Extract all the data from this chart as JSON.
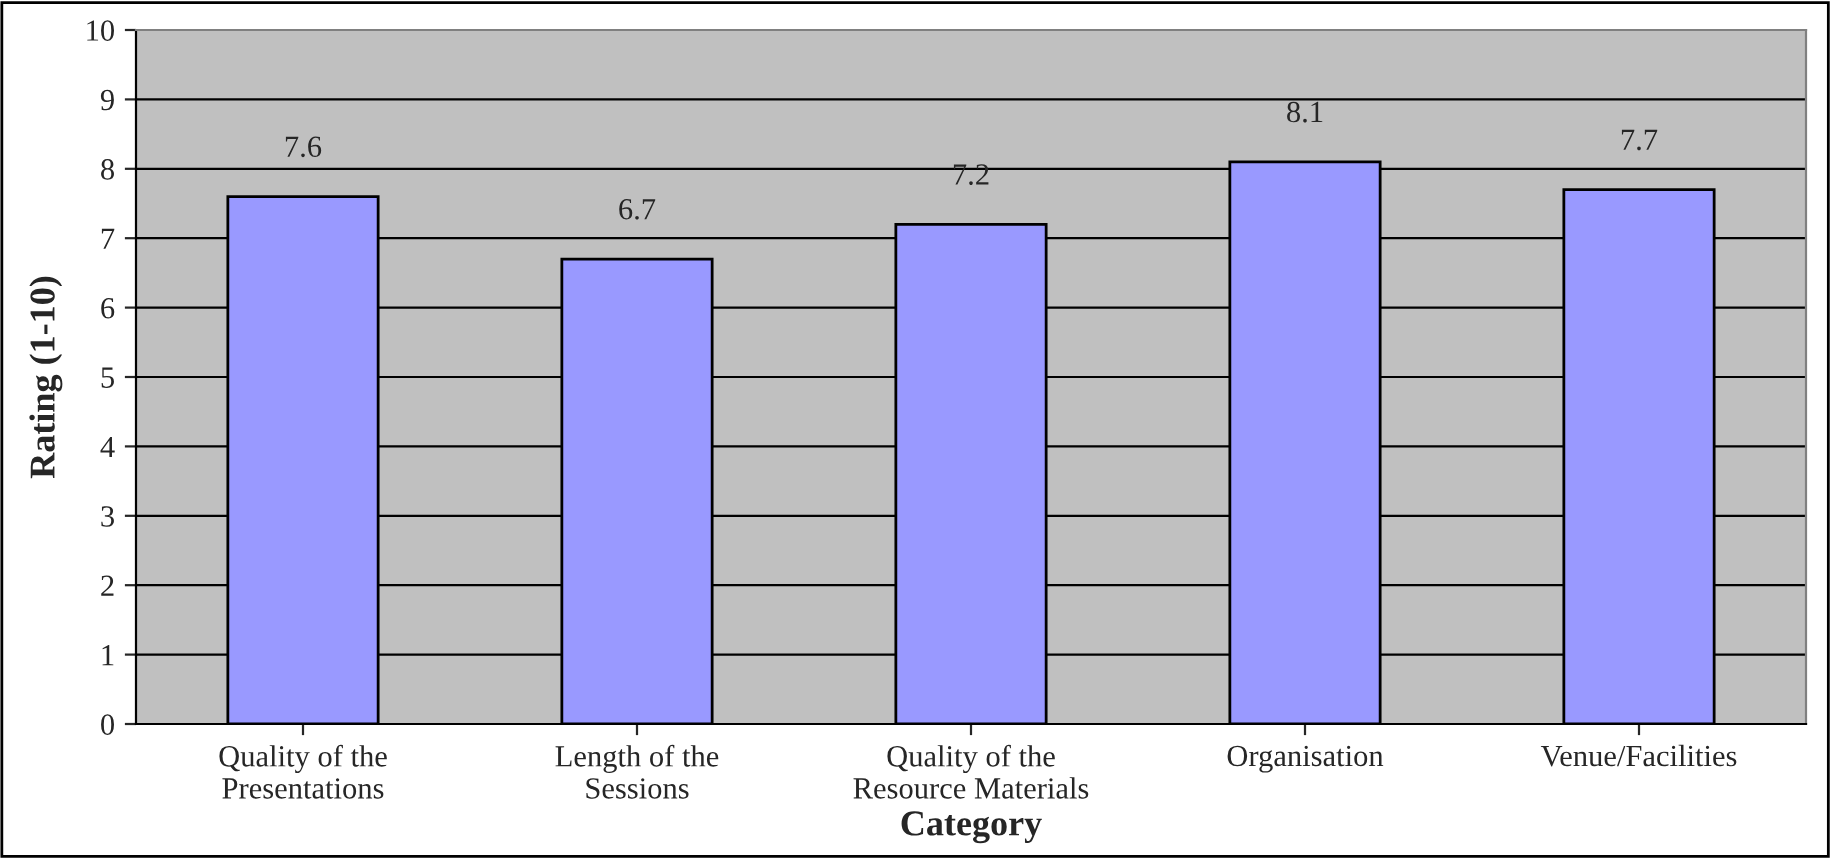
{
  "chart_data": {
    "type": "bar",
    "xlabel": "Category",
    "ylabel": "Rating (1-10)",
    "categories": [
      "Quality of the\nPresentations",
      "Length of the\nSessions",
      "Quality of the\nResource Materials",
      "Organisation",
      "Venue/Facilities"
    ],
    "values": [
      7.6,
      6.7,
      7.2,
      8.1,
      7.7
    ],
    "color": "#9999ff",
    "ylim": [
      0,
      10
    ],
    "yticks": [
      0,
      1,
      2,
      3,
      4,
      5,
      6,
      7,
      8,
      9,
      10
    ],
    "grid": "y",
    "data_labels": true
  }
}
